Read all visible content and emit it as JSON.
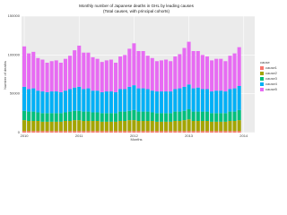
{
  "chart_data": {
    "type": "stacked-bar",
    "title": "Monthly number of Japanese deaths in GHL by leading causes",
    "subtitle": "(Total causes, with principal cohorts)",
    "x_label": "Months",
    "y_label": "Number of deaths",
    "legend_title": "cause",
    "x": [
      2010,
      2010.083,
      2010.167,
      2010.25,
      2010.333,
      2010.417,
      2010.5,
      2010.583,
      2010.667,
      2010.75,
      2010.833,
      2010.917,
      2011,
      2011.083,
      2011.167,
      2011.25,
      2011.333,
      2011.417,
      2011.5,
      2011.583,
      2011.667,
      2011.75,
      2011.833,
      2011.917,
      2012,
      2012.083,
      2012.167,
      2012.25,
      2012.333,
      2012.417,
      2012.5,
      2012.583,
      2012.667,
      2012.75,
      2012.833,
      2012.917,
      2013,
      2013.083,
      2013.167,
      2013.25,
      2013.333,
      2013.417,
      2013.5,
      2013.583,
      2013.667,
      2013.75,
      2013.833,
      2013.917
    ],
    "xlim": [
      2009.95,
      2014.2
    ],
    "xticks": [
      2010,
      2011,
      2012,
      2013,
      2014
    ],
    "ylim": [
      0,
      150000
    ],
    "yticks": [
      0,
      50000,
      100000,
      150000
    ],
    "grid": true,
    "series": [
      {
        "name": "cause1",
        "color": "#F8766D",
        "values": [
          2000,
          2000,
          2000,
          2000,
          2000,
          2000,
          2000,
          2000,
          2000,
          2000,
          2000,
          2000,
          2000,
          2000,
          2000,
          2000,
          2000,
          2000,
          2000,
          2000,
          2000,
          2000,
          2000,
          2000,
          2000,
          2000,
          2000,
          2000,
          2000,
          2000,
          2000,
          2000,
          2000,
          2000,
          2000,
          2000,
          2000,
          2000,
          2000,
          2000,
          2000,
          2000,
          2000,
          2000,
          2000,
          2000,
          2000,
          2000
        ]
      },
      {
        "name": "cause2",
        "color": "#A3A500",
        "values": [
          14000,
          13000,
          13000,
          13000,
          12000,
          12000,
          12000,
          12000,
          12000,
          13000,
          13000,
          14000,
          14000,
          13000,
          13000,
          13000,
          13000,
          12000,
          12000,
          12000,
          12000,
          13000,
          13000,
          14000,
          14000,
          13000,
          13000,
          13000,
          13000,
          12000,
          12000,
          12000,
          12000,
          13000,
          13000,
          14000,
          15000,
          13000,
          13000,
          13000,
          13000,
          12000,
          12000,
          12000,
          12000,
          13000,
          13000,
          14000
        ]
      },
      {
        "name": "cause3",
        "color": "#00BF7D",
        "values": [
          12000,
          12000,
          12000,
          11000,
          11000,
          11000,
          11000,
          11000,
          11000,
          11000,
          12000,
          12000,
          12000,
          12000,
          12000,
          11000,
          11000,
          11000,
          11000,
          11000,
          11000,
          12000,
          12000,
          12000,
          13000,
          12000,
          12000,
          12000,
          11000,
          11000,
          11000,
          11000,
          11000,
          12000,
          12000,
          12000,
          13000,
          12000,
          12000,
          12000,
          12000,
          11000,
          11000,
          11000,
          11000,
          12000,
          12000,
          13000
        ]
      },
      {
        "name": "cause4",
        "color": "#00B0F6",
        "values": [
          31000,
          29000,
          30000,
          28000,
          28000,
          27000,
          28000,
          28000,
          27000,
          28000,
          29000,
          30000,
          31000,
          29000,
          30000,
          28000,
          28000,
          27000,
          28000,
          28000,
          27000,
          29000,
          29000,
          31000,
          32000,
          30000,
          30000,
          29000,
          28000,
          28000,
          28000,
          28000,
          28000,
          29000,
          30000,
          31000,
          32000,
          30000,
          31000,
          29000,
          29000,
          28000,
          29000,
          29000,
          28000,
          29000,
          30000,
          31000
        ]
      },
      {
        "name": "cause5",
        "color": "#E76BF3",
        "values": [
          52000,
          46000,
          47000,
          42000,
          41000,
          38000,
          39000,
          40000,
          38000,
          41000,
          43000,
          48000,
          53000,
          47000,
          46000,
          43000,
          41000,
          39000,
          40000,
          41000,
          38000,
          42000,
          44000,
          49000,
          54000,
          48000,
          48000,
          43000,
          42000,
          39000,
          40000,
          41000,
          39000,
          42000,
          44000,
          50000,
          55000,
          48000,
          47000,
          44000,
          42000,
          40000,
          41000,
          41000,
          39000,
          43000,
          45000,
          50000
        ]
      }
    ]
  }
}
